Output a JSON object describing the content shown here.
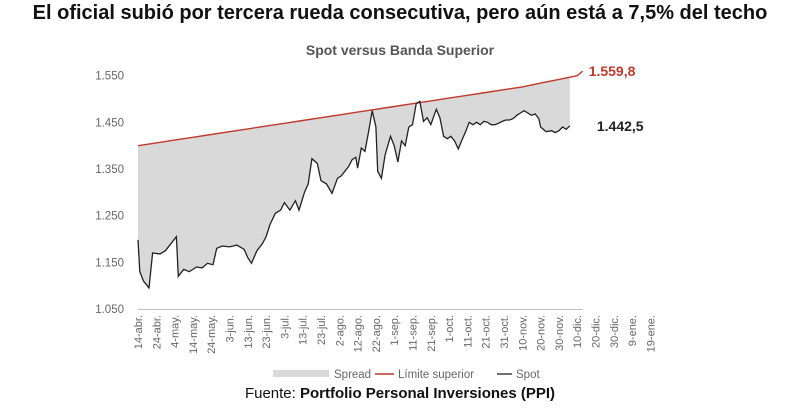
{
  "headline": "El oficial subió por tercera rueda consecutiva, pero aún está a 7,5% del techo",
  "source": {
    "prefix": "Fuente: ",
    "name": "Portfolio Personal Inversiones (PPI)"
  },
  "colors": {
    "band": "#c0392b",
    "spot": "#222222",
    "spread": "#d9d9d9"
  },
  "chart_data": {
    "type": "area",
    "title": "Spot versus Banda Superior",
    "ylim": [
      1050,
      1560
    ],
    "yticks": [
      1050,
      1150,
      1250,
      1350,
      1450,
      1550
    ],
    "ytick_labels": [
      "1.050",
      "1.150",
      "1.250",
      "1.350",
      "1.450",
      "1.550"
    ],
    "categories": [
      "14-abr.",
      "24-abr.",
      "4-may.",
      "14-may.",
      "24-may.",
      "3-jun.",
      "13-jun.",
      "23-jun.",
      "3-jul.",
      "13-jul.",
      "23-jul.",
      "2-ago.",
      "12-ago.",
      "22-ago.",
      "1-sep.",
      "11-sep.",
      "21-sep.",
      "1-oct.",
      "11-oct.",
      "21-oct.",
      "31-oct.",
      "10-nov.",
      "20-nov.",
      "30-nov.",
      "10-dic.",
      "20-dic.",
      "30-dic.",
      "9-ene.",
      "19-ene."
    ],
    "grid": false,
    "legend": {
      "position": "bottom",
      "entries": [
        "Spread",
        "Límite superior",
        "Spot"
      ]
    },
    "series": [
      {
        "name": "Límite superior",
        "points": [
          [
            0,
            1400
          ],
          [
            1,
            1406
          ],
          [
            2,
            1412
          ],
          [
            3,
            1418
          ],
          [
            4,
            1424
          ],
          [
            5,
            1430
          ],
          [
            6,
            1436
          ],
          [
            7,
            1442
          ],
          [
            8,
            1448
          ],
          [
            9,
            1454
          ],
          [
            10,
            1460
          ],
          [
            11,
            1466
          ],
          [
            12,
            1472
          ],
          [
            13,
            1478
          ],
          [
            14,
            1484
          ],
          [
            15,
            1490
          ],
          [
            16,
            1496
          ],
          [
            17,
            1502
          ],
          [
            18,
            1508
          ],
          [
            19,
            1514
          ],
          [
            20,
            1520
          ],
          [
            21,
            1526
          ],
          [
            22,
            1534
          ],
          [
            23,
            1542
          ],
          [
            24,
            1550
          ],
          [
            24.3,
            1559.8
          ]
        ]
      },
      {
        "name": "Spot",
        "points": [
          [
            0,
            1198
          ],
          [
            0.1,
            1130
          ],
          [
            0.3,
            1110
          ],
          [
            0.6,
            1095
          ],
          [
            0.8,
            1170
          ],
          [
            1.2,
            1168
          ],
          [
            1.5,
            1175
          ],
          [
            1.8,
            1190
          ],
          [
            2.1,
            1205
          ],
          [
            2.2,
            1120
          ],
          [
            2.5,
            1135
          ],
          [
            2.8,
            1130
          ],
          [
            3.2,
            1140
          ],
          [
            3.5,
            1138
          ],
          [
            3.8,
            1148
          ],
          [
            4.1,
            1145
          ],
          [
            4.3,
            1180
          ],
          [
            4.6,
            1185
          ],
          [
            5.0,
            1183
          ],
          [
            5.4,
            1187
          ],
          [
            5.8,
            1178
          ],
          [
            6.0,
            1160
          ],
          [
            6.2,
            1148
          ],
          [
            6.5,
            1175
          ],
          [
            6.8,
            1190
          ],
          [
            7.0,
            1205
          ],
          [
            7.2,
            1230
          ],
          [
            7.5,
            1255
          ],
          [
            7.8,
            1262
          ],
          [
            8.0,
            1278
          ],
          [
            8.3,
            1262
          ],
          [
            8.6,
            1282
          ],
          [
            8.8,
            1262
          ],
          [
            9.1,
            1300
          ],
          [
            9.3,
            1318
          ],
          [
            9.5,
            1372
          ],
          [
            9.8,
            1362
          ],
          [
            10.0,
            1325
          ],
          [
            10.3,
            1318
          ],
          [
            10.6,
            1298
          ],
          [
            10.9,
            1330
          ],
          [
            11.1,
            1335
          ],
          [
            11.3,
            1345
          ],
          [
            11.5,
            1355
          ],
          [
            11.7,
            1370
          ],
          [
            11.9,
            1375
          ],
          [
            12.0,
            1352
          ],
          [
            12.2,
            1395
          ],
          [
            12.4,
            1388
          ],
          [
            12.6,
            1430
          ],
          [
            12.8,
            1475
          ],
          [
            13.0,
            1440
          ],
          [
            13.1,
            1345
          ],
          [
            13.3,
            1330
          ],
          [
            13.5,
            1380
          ],
          [
            13.8,
            1420
          ],
          [
            14.0,
            1400
          ],
          [
            14.2,
            1365
          ],
          [
            14.4,
            1410
          ],
          [
            14.6,
            1400
          ],
          [
            14.8,
            1440
          ],
          [
            15.0,
            1445
          ],
          [
            15.2,
            1490
          ],
          [
            15.4,
            1495
          ],
          [
            15.6,
            1452
          ],
          [
            15.8,
            1460
          ],
          [
            16.0,
            1445
          ],
          [
            16.3,
            1478
          ],
          [
            16.5,
            1460
          ],
          [
            16.7,
            1420
          ],
          [
            16.9,
            1415
          ],
          [
            17.1,
            1420
          ],
          [
            17.3,
            1410
          ],
          [
            17.5,
            1393
          ],
          [
            17.7,
            1412
          ],
          [
            17.9,
            1430
          ],
          [
            18.1,
            1450
          ],
          [
            18.3,
            1445
          ],
          [
            18.5,
            1450
          ],
          [
            18.7,
            1445
          ],
          [
            18.9,
            1452
          ],
          [
            19.1,
            1450
          ],
          [
            19.3,
            1445
          ],
          [
            19.5,
            1445
          ],
          [
            19.7,
            1448
          ],
          [
            19.9,
            1452
          ],
          [
            20.1,
            1455
          ],
          [
            20.3,
            1455
          ],
          [
            20.5,
            1458
          ],
          [
            20.7,
            1465
          ],
          [
            20.9,
            1470
          ],
          [
            21.1,
            1475
          ],
          [
            21.3,
            1470
          ],
          [
            21.5,
            1465
          ],
          [
            21.7,
            1468
          ],
          [
            21.9,
            1458
          ],
          [
            22.0,
            1440
          ],
          [
            22.3,
            1430
          ],
          [
            22.6,
            1432
          ],
          [
            22.8,
            1428
          ],
          [
            23.0,
            1432
          ],
          [
            23.2,
            1440
          ],
          [
            23.4,
            1435
          ],
          [
            23.6,
            1442.5
          ]
        ]
      }
    ],
    "end_labels": {
      "band": "1.559,8",
      "spot": "1.442,5"
    }
  }
}
